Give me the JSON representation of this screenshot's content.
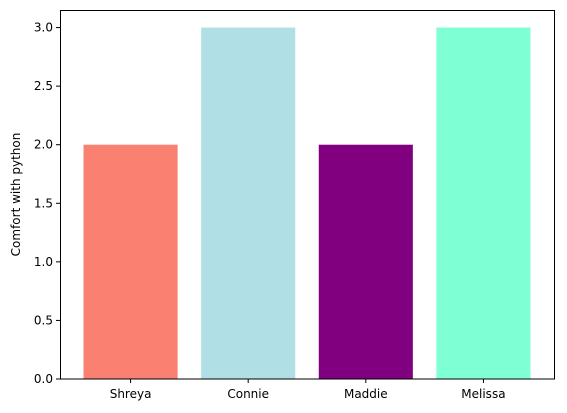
{
  "chart_data": {
    "type": "bar",
    "title": "",
    "xlabel": "",
    "ylabel": "Comfort with python",
    "categories": [
      "Shreya",
      "Connie",
      "Maddie",
      "Melissa"
    ],
    "values": [
      2,
      3,
      2,
      3
    ],
    "colors": [
      "#FA8072",
      "#B0DFE5",
      "#800080",
      "#7FFFD4"
    ],
    "ylim": [
      0,
      3.15
    ],
    "yticks": [
      "0.0",
      "0.5",
      "1.0",
      "1.5",
      "2.0",
      "2.5",
      "3.0"
    ],
    "grid": false,
    "legend": null
  }
}
